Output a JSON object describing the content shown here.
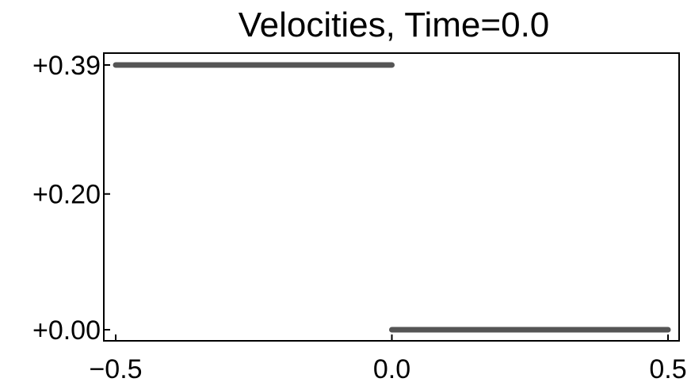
{
  "chart_data": {
    "type": "line",
    "title": "Velocities, Time=0.0",
    "xlabel": "",
    "ylabel": "",
    "xlim": [
      -0.5,
      0.5
    ],
    "ylim": [
      0.0,
      0.39
    ],
    "x_ticks": [
      -0.5,
      0.0,
      0.5
    ],
    "x_tick_labels": [
      "−0.5",
      "0.0",
      "0.5"
    ],
    "y_ticks": [
      0.0,
      0.2,
      0.39
    ],
    "y_tick_labels": [
      "+0.00",
      "+0.20",
      "+0.39"
    ],
    "grid": false,
    "legend": "none",
    "series": [
      {
        "x": [
          -0.5,
          0.0
        ],
        "y": [
          0.39,
          0.39
        ]
      },
      {
        "x": [
          0.0,
          0.5
        ],
        "y": [
          0.0,
          0.0
        ]
      }
    ],
    "line_color": "#555555"
  }
}
